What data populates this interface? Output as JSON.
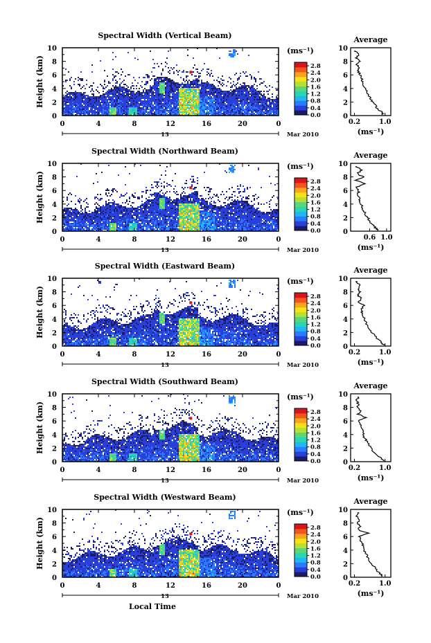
{
  "chart_data": {
    "type": "heatmap",
    "x_label": "Local Time",
    "y_label": "Height (km)",
    "date_label": "Mar 2010",
    "day_label": "13",
    "x_ticks": [
      "0",
      "4",
      "8",
      "12",
      "16",
      "20",
      "0"
    ],
    "x_range": [
      0,
      24
    ],
    "y_ticks": [
      "0",
      "2",
      "4",
      "6",
      "8",
      "10"
    ],
    "y_range": [
      0,
      10
    ],
    "colorbar": {
      "unit": "(ms⁻¹)",
      "ticks": [
        "0.0",
        "0.4",
        "0.8",
        "1.2",
        "1.6",
        "2.0",
        "2.4",
        "2.8"
      ],
      "range": [
        0,
        3.0
      ],
      "colors": [
        "#1c1c66",
        "#2a3fd8",
        "#2c7bff",
        "#22b7f0",
        "#29d5b5",
        "#5cd67a",
        "#b6e036",
        "#f4e21b",
        "#f7a51d",
        "#f0571c",
        "#d8151a"
      ]
    },
    "panels": [
      {
        "title": "Spectral Width (Vertical Beam)",
        "profile_title": "Average",
        "profile_unit": "(ms⁻¹)",
        "profile_ticks": [
          "0.2",
          "1.0"
        ],
        "profile_tick_values": [
          0.2,
          1.0
        ],
        "profile_xlim": [
          0.1,
          1.15
        ],
        "profile_heights": [
          0.1,
          0.5,
          1.0,
          1.5,
          2.0,
          2.5,
          3.0,
          3.5,
          4.0,
          4.5,
          5.0,
          5.5,
          6.0,
          6.5,
          7.0,
          7.5,
          8.0,
          8.5,
          9.0,
          9.5
        ],
        "profile_values": [
          0.95,
          0.92,
          0.8,
          0.75,
          0.68,
          0.62,
          0.58,
          0.52,
          0.48,
          0.44,
          0.42,
          0.38,
          0.35,
          0.3,
          0.32,
          0.26,
          0.33,
          0.25,
          0.3,
          0.22
        ]
      },
      {
        "title": "Spectral Width (Northward Beam)",
        "profile_title": "Average",
        "profile_unit": "(ms⁻¹)",
        "profile_ticks": [
          "0.6",
          "1.0"
        ],
        "profile_tick_values": [
          0.6,
          1.0
        ],
        "profile_xlim": [
          0.15,
          1.1
        ],
        "profile_heights": [
          0.1,
          0.5,
          1.0,
          1.5,
          2.0,
          2.5,
          3.0,
          3.5,
          4.0,
          4.5,
          5.0,
          5.5,
          6.0,
          6.5,
          7.0,
          7.5,
          8.0,
          8.5,
          9.0,
          9.5
        ],
        "profile_values": [
          0.78,
          0.74,
          0.65,
          0.6,
          0.55,
          0.5,
          0.46,
          0.43,
          0.4,
          0.36,
          0.34,
          0.32,
          0.35,
          0.3,
          0.5,
          0.28,
          0.45,
          0.3,
          0.42,
          0.28
        ]
      },
      {
        "title": "Spectral Width (Eastward Beam)",
        "profile_title": "Average",
        "profile_unit": "(ms⁻¹)",
        "profile_ticks": [
          "0.2",
          "1.0"
        ],
        "profile_tick_values": [
          0.2,
          1.0
        ],
        "profile_xlim": [
          0.1,
          1.15
        ],
        "profile_heights": [
          0.1,
          0.5,
          1.0,
          1.5,
          2.0,
          2.5,
          3.0,
          3.5,
          4.0,
          4.5,
          5.0,
          5.5,
          6.0,
          6.5,
          7.0,
          7.5,
          8.0,
          8.5,
          9.0,
          9.5
        ],
        "profile_values": [
          0.98,
          0.9,
          0.82,
          0.74,
          0.66,
          0.6,
          0.54,
          0.5,
          0.46,
          0.42,
          0.4,
          0.38,
          0.45,
          0.3,
          0.38,
          0.28,
          0.35,
          0.3,
          0.35,
          0.25
        ]
      },
      {
        "title": "Spectral Width (Southward Beam)",
        "profile_title": "Average",
        "profile_unit": "(ms⁻¹)",
        "profile_ticks": [
          "0.2",
          "1.0"
        ],
        "profile_tick_values": [
          0.2,
          1.0
        ],
        "profile_xlim": [
          0.1,
          1.15
        ],
        "profile_heights": [
          0.1,
          0.5,
          1.0,
          1.5,
          2.0,
          2.5,
          3.0,
          3.5,
          4.0,
          4.5,
          5.0,
          5.5,
          6.0,
          6.5,
          7.0,
          7.5,
          8.0,
          8.5,
          9.0,
          9.5
        ],
        "profile_values": [
          0.95,
          0.9,
          0.78,
          0.7,
          0.62,
          0.58,
          0.52,
          0.46,
          0.45,
          0.42,
          0.4,
          0.35,
          0.3,
          0.5,
          0.3,
          0.35,
          0.28,
          0.3,
          0.26,
          0.3
        ]
      },
      {
        "title": "Spectral Width (Westward Beam)",
        "profile_title": "Average",
        "profile_unit": "(ms⁻¹)",
        "profile_ticks": [
          "0.2",
          "1.0"
        ],
        "profile_tick_values": [
          0.2,
          1.0
        ],
        "profile_xlim": [
          0.1,
          1.15
        ],
        "profile_heights": [
          0.1,
          0.5,
          1.0,
          1.5,
          2.0,
          2.5,
          3.0,
          3.5,
          4.0,
          4.5,
          5.0,
          5.5,
          6.0,
          6.5,
          7.0,
          7.5,
          8.0,
          8.5,
          9.0,
          9.5
        ],
        "profile_values": [
          0.92,
          0.88,
          0.78,
          0.72,
          0.64,
          0.58,
          0.54,
          0.5,
          0.46,
          0.44,
          0.4,
          0.36,
          0.32,
          0.55,
          0.3,
          0.35,
          0.28,
          0.32,
          0.26,
          0.3
        ]
      }
    ]
  }
}
